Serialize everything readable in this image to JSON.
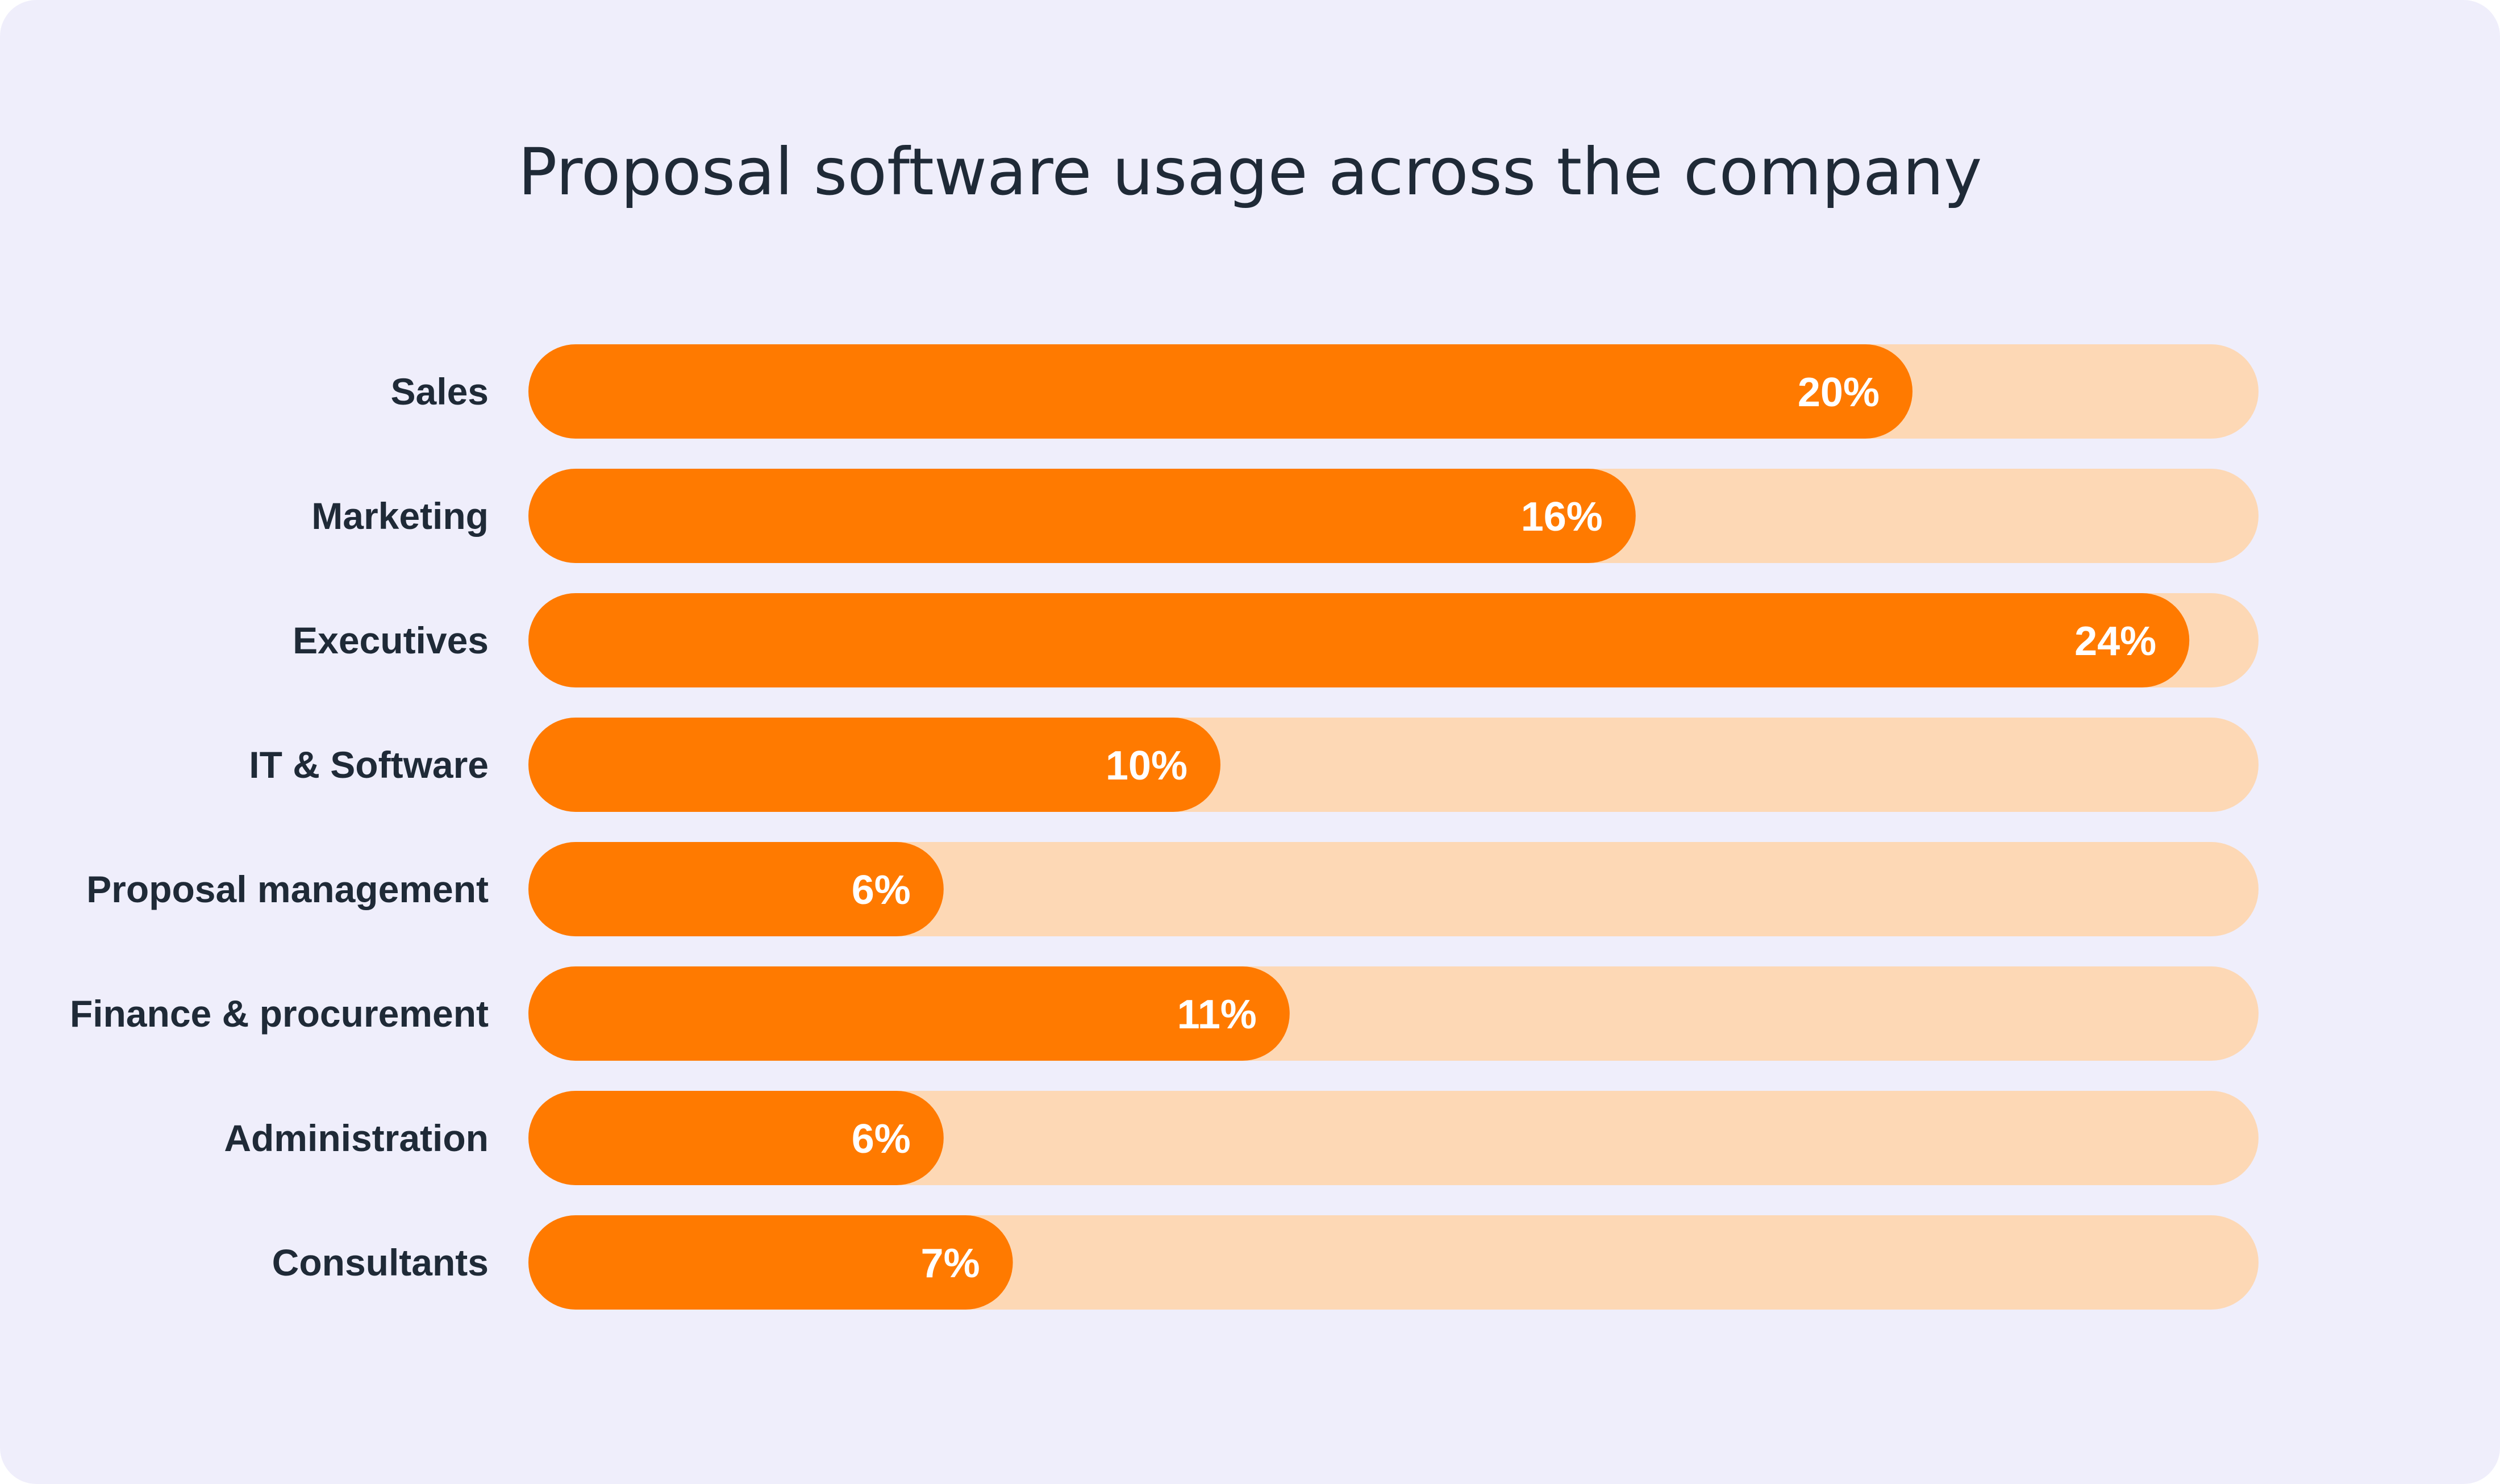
{
  "chart_data": {
    "type": "bar",
    "orientation": "horizontal",
    "title": "Proposal software usage across the company",
    "categories": [
      "Sales",
      "Marketing",
      "Executives",
      "IT & Software",
      "Proposal management",
      "Finance & procurement",
      "Administration",
      "Consultants"
    ],
    "values": [
      20,
      16,
      24,
      10,
      6,
      11,
      6,
      7
    ],
    "value_labels": [
      "20%",
      "16%",
      "24%",
      "10%",
      "6%",
      "11%",
      "6%",
      "7%"
    ],
    "unit": "%",
    "xlim": [
      0,
      25
    ],
    "xlabel": "",
    "ylabel": "",
    "grid": false,
    "legend": "none"
  },
  "colors": {
    "background": "#efeefb",
    "bar_fill": "#ff7a00",
    "track_fill": "#fdd8b5",
    "category_text": "#1f2a37",
    "value_text": "#ffffff",
    "title_text": "#1f2a37"
  }
}
